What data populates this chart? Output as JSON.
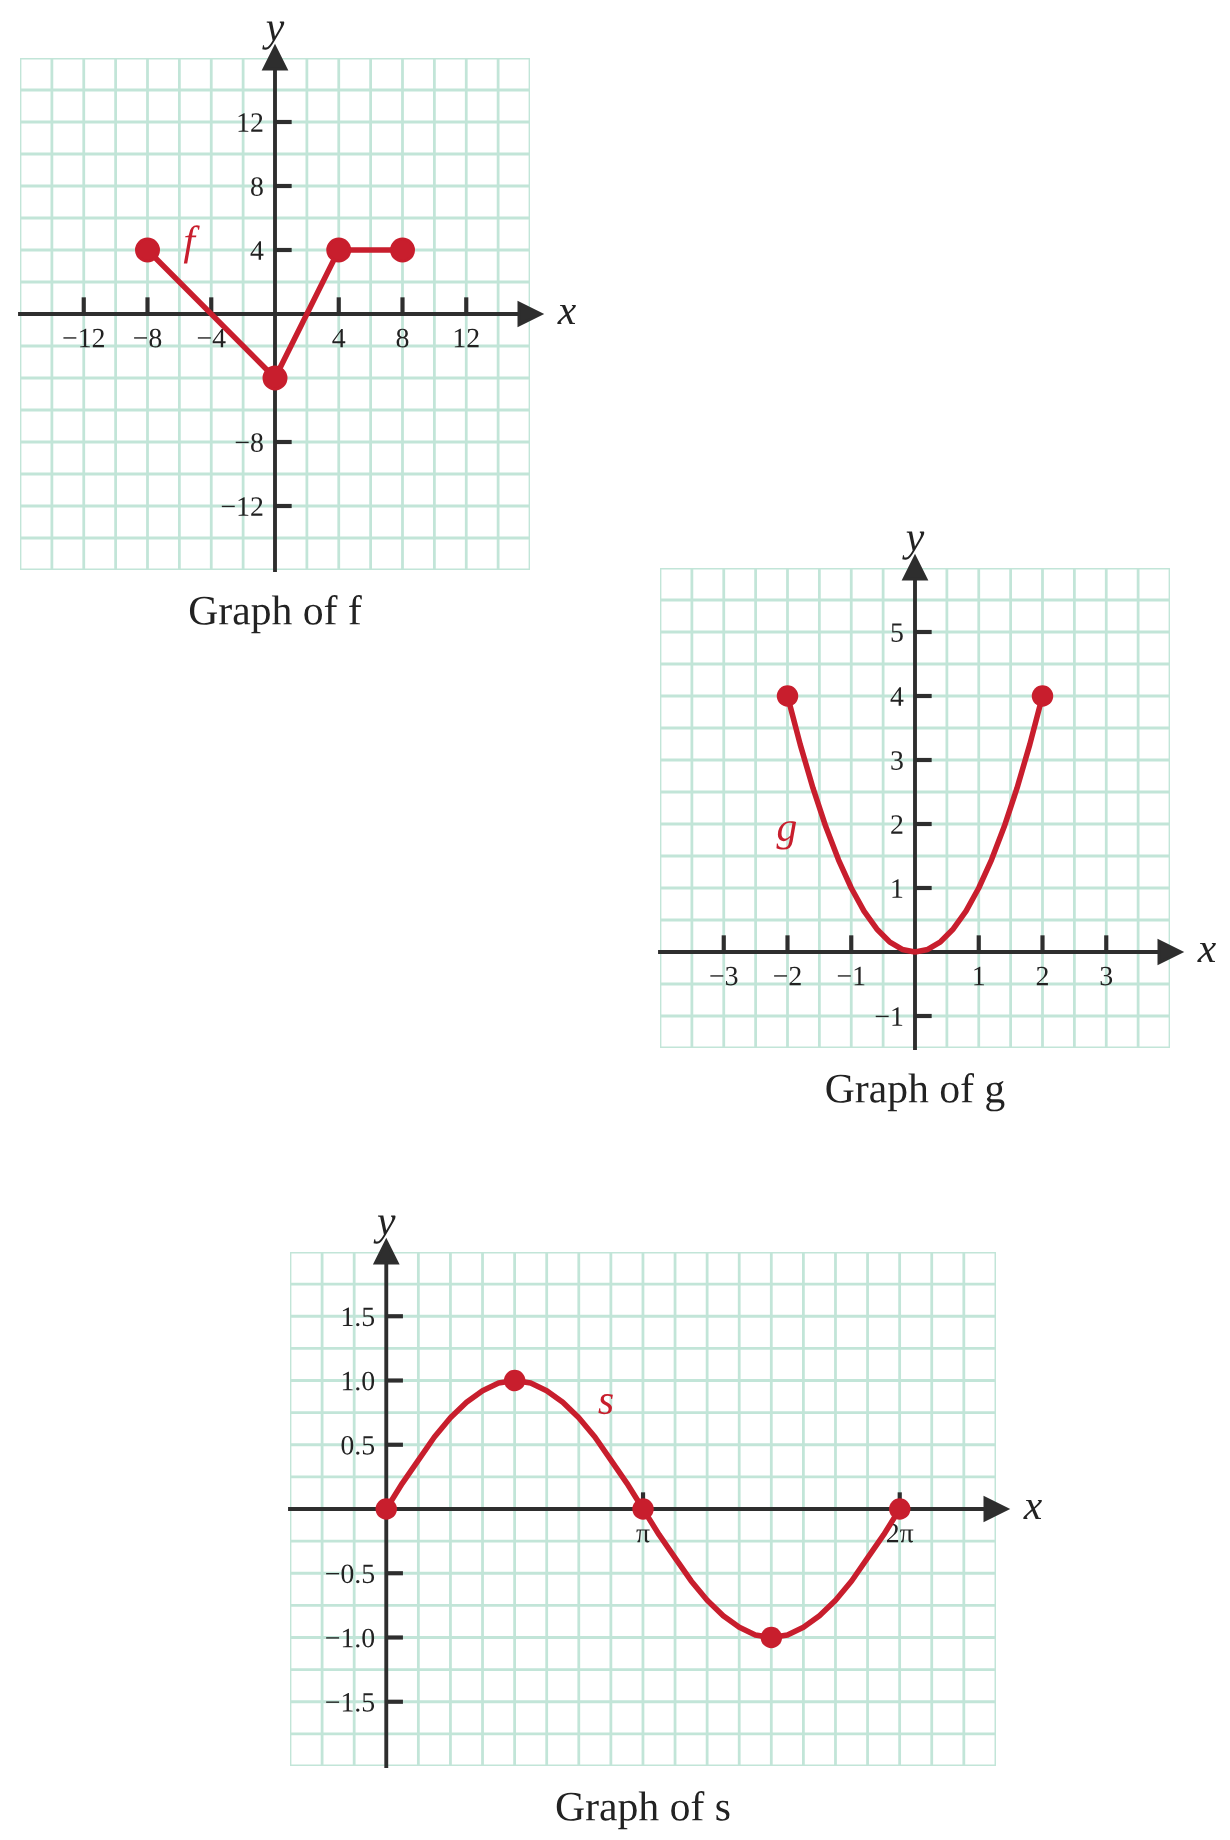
{
  "chart_data": [
    {
      "type": "line",
      "title": "Graph of f",
      "xlabel": "x",
      "ylabel": "y",
      "x": [
        -8,
        0,
        4,
        8
      ],
      "series": [
        {
          "name": "f",
          "color": "#c81e2d",
          "marker": "circle",
          "values": [
            4,
            -4,
            4,
            4
          ]
        }
      ],
      "xlim": [
        -16,
        16
      ],
      "ylim": [
        -16,
        16
      ],
      "xticks": [
        {
          "value": -12,
          "label": "−12"
        },
        {
          "value": -8,
          "label": "−8"
        },
        {
          "value": -4,
          "label": "−4"
        },
        4,
        8,
        12
      ],
      "yticks": [
        {
          "value": -12,
          "label": "−12"
        },
        {
          "value": -8,
          "label": "−8"
        },
        4,
        8,
        12
      ],
      "grid": true
    },
    {
      "type": "line",
      "title": "Graph of g",
      "xlabel": "x",
      "ylabel": "y",
      "series": [
        {
          "name": "g",
          "color": "#c81e2d",
          "x": [
            -2,
            -1.8,
            -1.6,
            -1.4,
            -1.2,
            -1,
            -0.8,
            -0.6,
            -0.4,
            -0.2,
            0,
            0.2,
            0.4,
            0.6,
            0.8,
            1,
            1.2,
            1.4,
            1.6,
            1.8,
            2
          ],
          "values": [
            4,
            3.24,
            2.56,
            1.96,
            1.44,
            1,
            0.64,
            0.36,
            0.16,
            0.04,
            0,
            0.04,
            0.16,
            0.36,
            0.64,
            1,
            1.44,
            1.96,
            2.56,
            3.24,
            4
          ]
        },
        {
          "type": "scatter",
          "color": "#c81e2d",
          "marker": "circle",
          "x": [
            -2,
            2
          ],
          "values": [
            4,
            4
          ]
        }
      ],
      "xlim": [
        -4,
        4
      ],
      "ylim": [
        -1.5,
        6
      ],
      "xticks": [
        {
          "value": -3,
          "label": "−3"
        },
        {
          "value": -2,
          "label": "−2"
        },
        {
          "value": -1,
          "label": "−1"
        },
        1,
        2,
        3
      ],
      "yticks": [
        {
          "value": -1,
          "label": "−1"
        },
        1,
        2,
        3,
        4,
        5
      ],
      "grid": true
    },
    {
      "type": "line",
      "title": "Graph of s",
      "xlabel": "x",
      "ylabel": "y",
      "series": [
        {
          "name": "s",
          "color": "#c81e2d",
          "x": [
            0,
            0.196,
            0.393,
            0.589,
            0.785,
            0.982,
            1.178,
            1.374,
            1.571,
            1.767,
            1.963,
            2.16,
            2.356,
            2.553,
            2.749,
            2.945,
            3.142,
            3.338,
            3.534,
            3.731,
            3.927,
            4.123,
            4.32,
            4.516,
            4.712,
            4.909,
            5.105,
            5.301,
            5.498,
            5.694,
            5.89,
            6.087,
            6.283
          ],
          "values": [
            0,
            0.2,
            0.38,
            0.56,
            0.71,
            0.83,
            0.92,
            0.98,
            1,
            0.98,
            0.92,
            0.83,
            0.71,
            0.56,
            0.38,
            0.2,
            0,
            -0.2,
            -0.38,
            -0.56,
            -0.71,
            -0.83,
            -0.92,
            -0.98,
            -1,
            -0.98,
            -0.92,
            -0.83,
            -0.71,
            -0.56,
            -0.38,
            -0.2,
            0
          ]
        },
        {
          "type": "scatter",
          "color": "#c81e2d",
          "marker": "circle",
          "x": [
            0,
            1.571,
            3.142,
            4.712,
            6.283
          ],
          "values": [
            0,
            1,
            0,
            -1,
            0
          ]
        }
      ],
      "xlim": [
        -1.178,
        7.461
      ],
      "ylim": [
        -2,
        2
      ],
      "xticks": [
        {
          "value": 3.142,
          "label": "π"
        },
        {
          "value": 6.283,
          "label": "2π"
        }
      ],
      "yticks": [
        {
          "value": -1.5,
          "label": "−1.5"
        },
        {
          "value": -1,
          "label": "−1.0"
        },
        {
          "value": -0.5,
          "label": "−0.5"
        },
        {
          "value": 0.5,
          "label": "0.5"
        },
        {
          "value": 1,
          "label": "1.0"
        },
        1.5
      ],
      "grid": true
    }
  ]
}
